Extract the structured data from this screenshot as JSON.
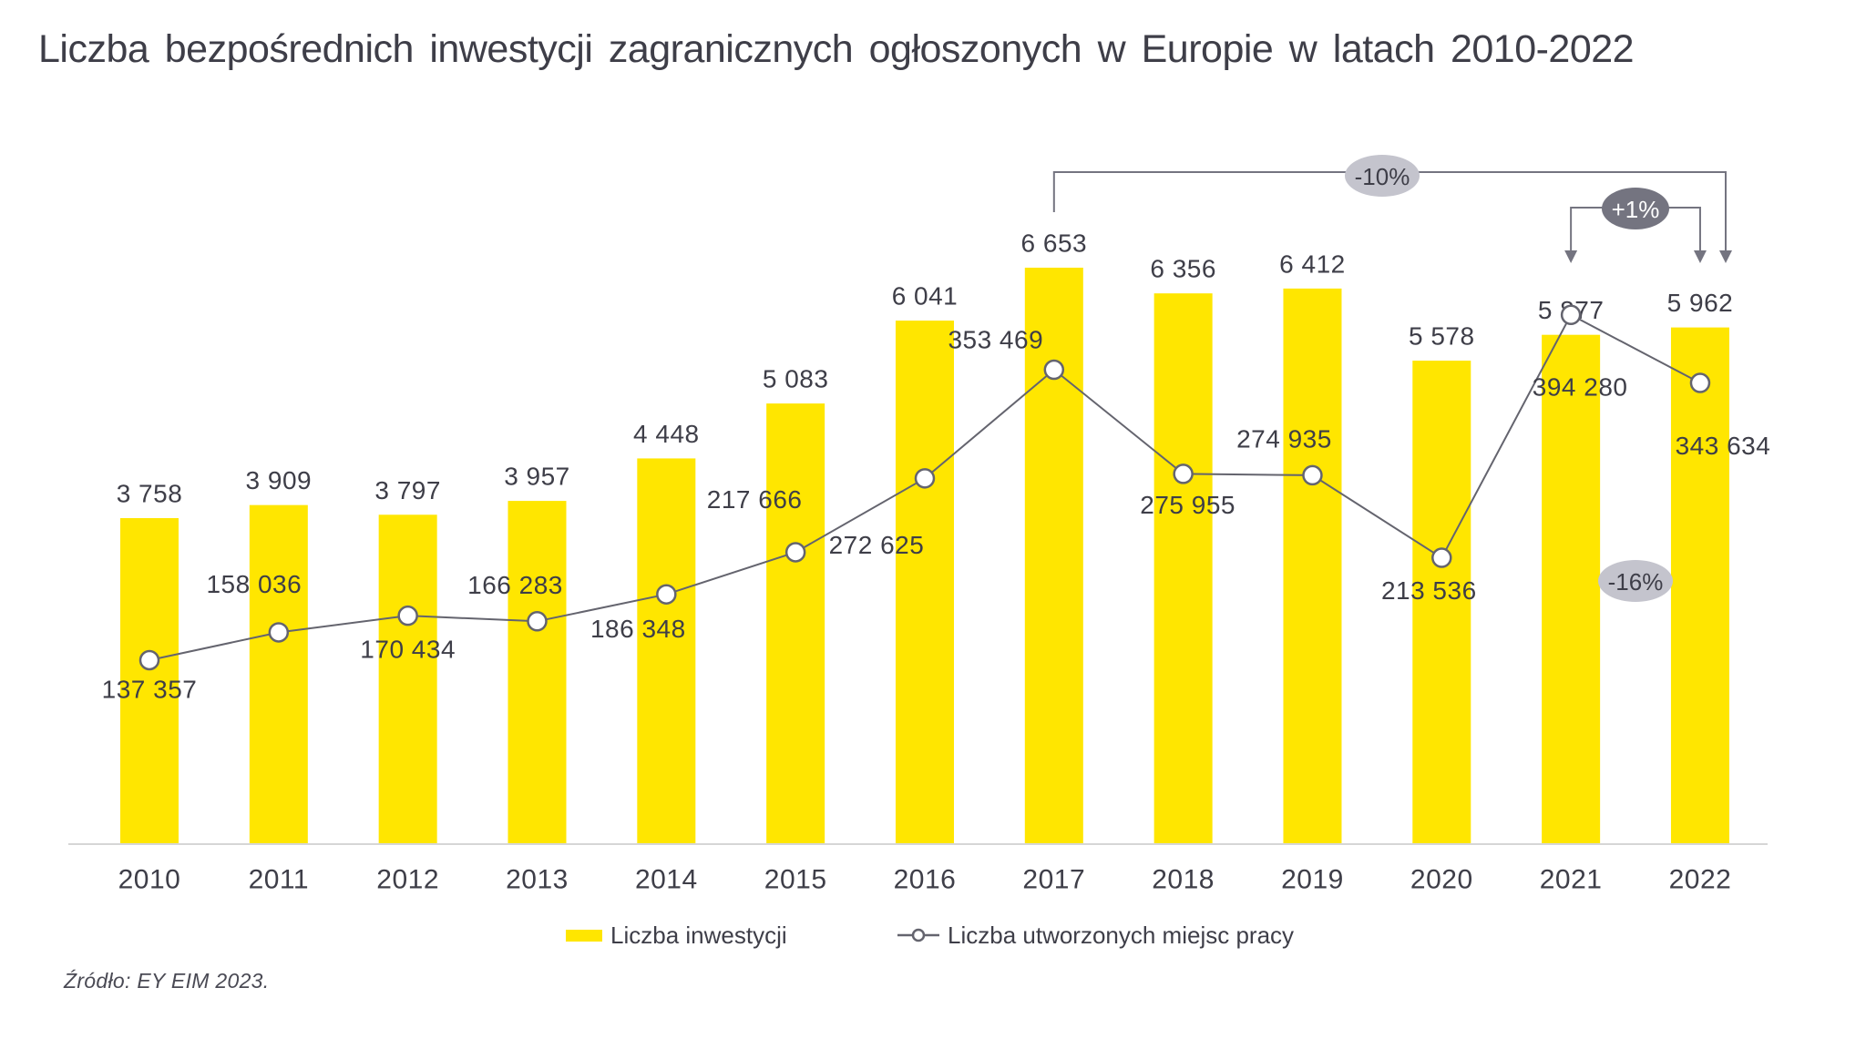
{
  "title": "Liczba bezpośrednich inwestycji zagranicznych ogłoszonych w Europie w latach 2010-2022",
  "source": "Źródło: EY EIM 2023.",
  "legend": {
    "bars": "Liczba inwestycji",
    "line": "Liczba utworzonych miejsc pracy",
    "position": "bottom"
  },
  "colors": {
    "bar": "#FFE600",
    "line": "#64646E",
    "text": "#3E3E48",
    "annotation_light": "#C4C4CD",
    "annotation_dark": "#747480",
    "annotation_dark_text": "#FFFFFF",
    "axis": "#D6D6D6"
  },
  "chart_data": {
    "type": "bar",
    "subtype": "bar+line combo",
    "categories": [
      "2010",
      "2011",
      "2012",
      "2013",
      "2014",
      "2015",
      "2016",
      "2017",
      "2018",
      "2019",
      "2020",
      "2021",
      "2022"
    ],
    "series": [
      {
        "name": "Liczba inwestycji",
        "type": "bar",
        "values": [
          3758,
          3909,
          3797,
          3957,
          4448,
          5083,
          6041,
          6653,
          6356,
          6412,
          5578,
          5877,
          5962
        ],
        "labels": [
          "3 758",
          "3 909",
          "3 797",
          "3 957",
          "4 448",
          "5 083",
          "6 041",
          "6 653",
          "6 356",
          "6 412",
          "5 578",
          "5 877",
          "5 962"
        ]
      },
      {
        "name": "Liczba utworzonych miejsc pracy",
        "type": "line",
        "values": [
          137357,
          158036,
          170434,
          166283,
          186348,
          217666,
          272625,
          353469,
          275955,
          274935,
          213536,
          394280,
          343634
        ],
        "labels": [
          "137 357",
          "158 036",
          "170 434",
          "166 283",
          "186 348",
          "217 666",
          "272 625",
          "353 469",
          "275 955",
          "274 935",
          "213 536",
          "394 280",
          "343 634"
        ]
      }
    ],
    "annotations": [
      {
        "label": "-10%",
        "type": "bracket",
        "from": "2017",
        "to": "2022",
        "style": "light"
      },
      {
        "label": "+1%",
        "type": "bracket",
        "from": "2021",
        "to": "2022",
        "style": "dark"
      },
      {
        "label": "-16%",
        "type": "badge",
        "near": "2022",
        "style": "light"
      }
    ],
    "xlabel": "",
    "ylabel": "",
    "value_axis_visible": false,
    "grid": false,
    "legend_position": "bottom"
  }
}
